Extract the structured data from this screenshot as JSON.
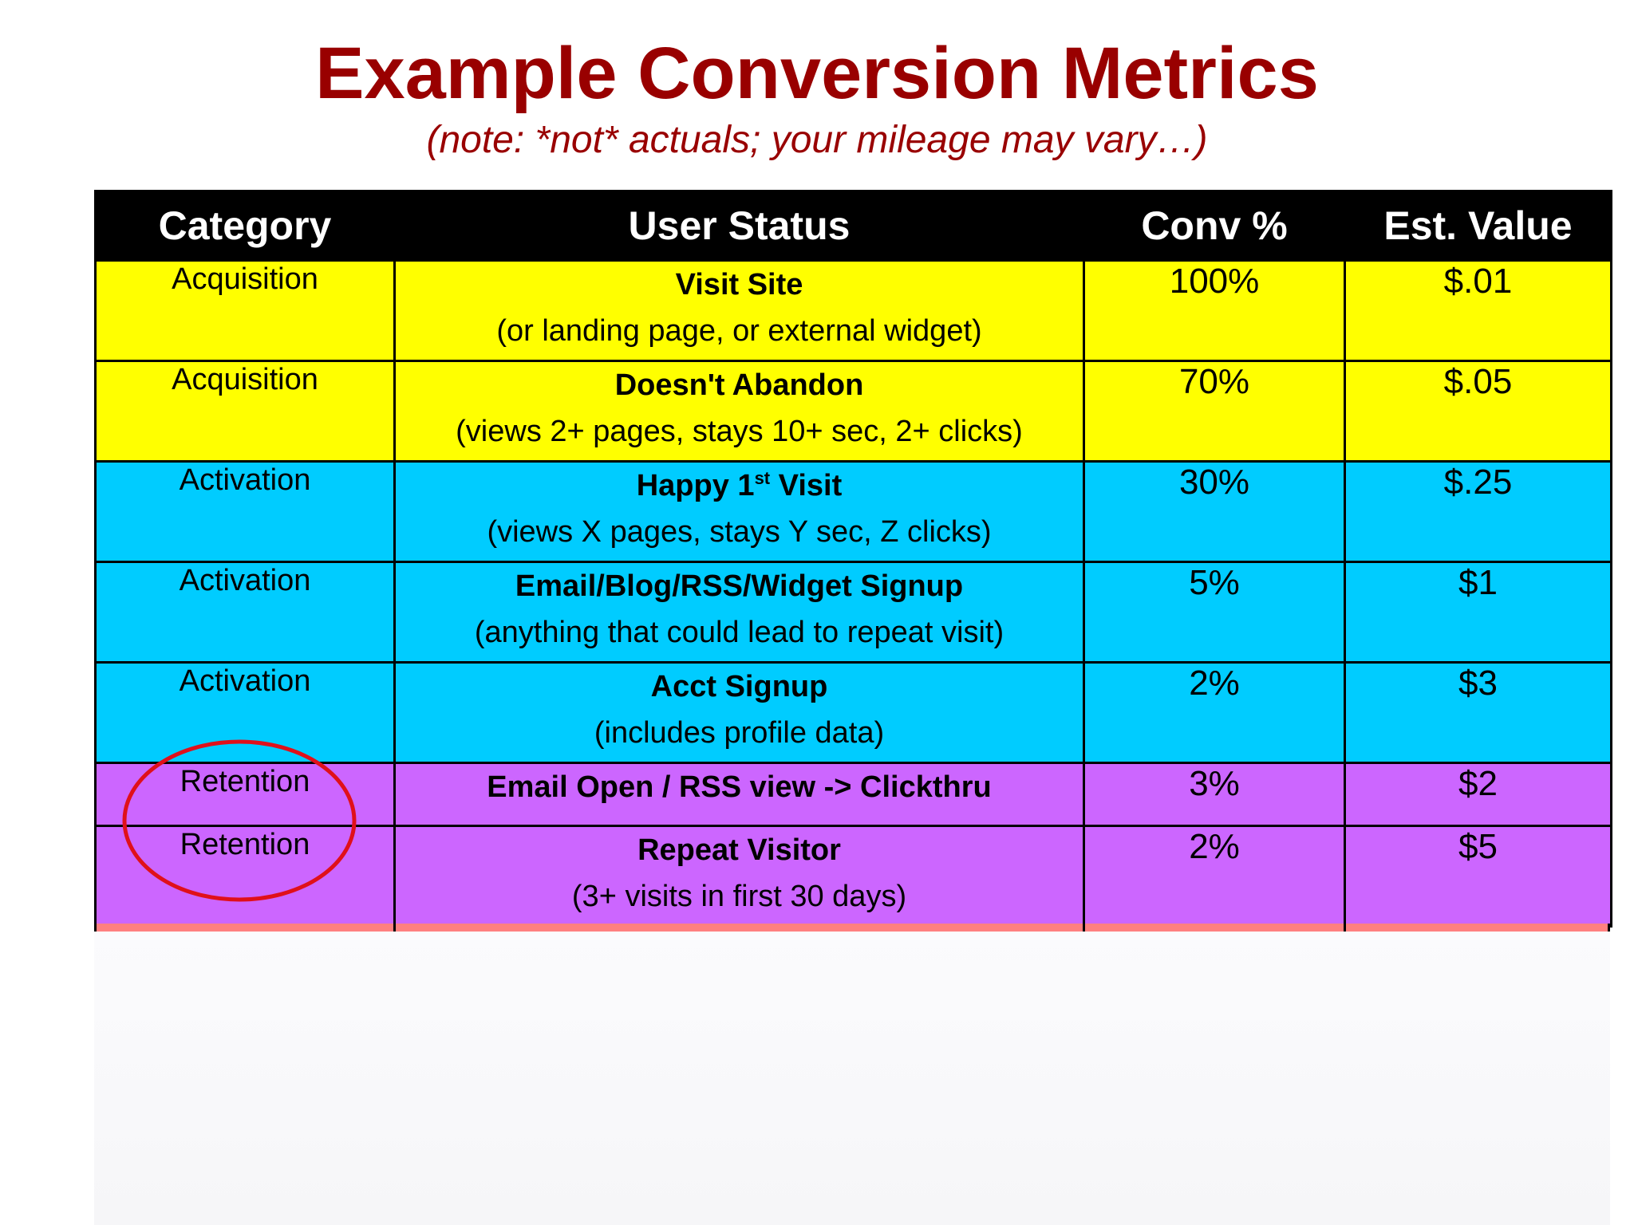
{
  "page": {
    "title": "Example Conversion Metrics",
    "subtitle": "(note: *not* actuals; your mileage may vary…)"
  },
  "table": {
    "headers": [
      "Category",
      "User Status",
      "Conv %",
      "Est. Value"
    ],
    "rows": [
      {
        "category": "Acquisition",
        "status": "Visit Site",
        "detail": "(or landing page, or external widget)",
        "conv": "100%",
        "value": "$.01"
      },
      {
        "category": "Acquisition",
        "status": "Doesn't Abandon",
        "detail": "(views 2+ pages, stays 10+ sec, 2+ clicks)",
        "conv": "70%",
        "value": "$.05"
      },
      {
        "category": "Activation",
        "status": "Happy 1",
        "status_sup": "st",
        "status_suffix": " Visit",
        "detail": "(views X pages, stays Y sec, Z clicks)",
        "conv": "30%",
        "value": "$.25"
      },
      {
        "category": "Activation",
        "status": "Email/Blog/RSS/Widget Signup",
        "detail": "(anything that could lead to repeat visit)",
        "conv": "5%",
        "value": "$1"
      },
      {
        "category": "Activation",
        "status": "Acct Signup",
        "detail": "(includes profile data)",
        "conv": "2%",
        "value": "$3"
      },
      {
        "category": "Retention",
        "status": "Email Open / RSS view -> Clickthru",
        "conv": "3%",
        "value": "$2"
      },
      {
        "category": "Retention",
        "status": "Repeat Visitor",
        "detail": "(3+ visits in first 30 days)",
        "conv": "2%",
        "value": "$5"
      }
    ]
  },
  "colors": {
    "title": "#990000",
    "acquisition": "#ffff00",
    "activation": "#00ccff",
    "retention": "#cc66ff",
    "annotation_circle": "#e0101a",
    "cut_row": "#ff8080"
  }
}
